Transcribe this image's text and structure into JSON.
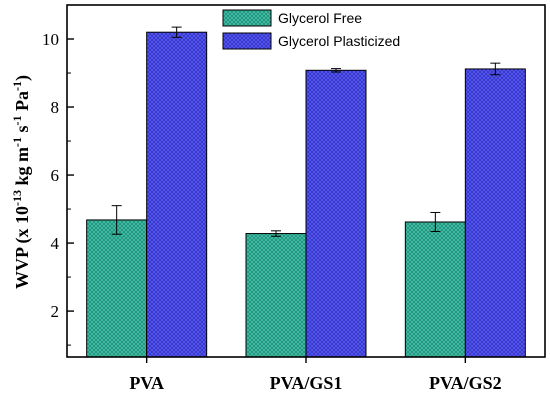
{
  "chart_data": {
    "type": "bar",
    "categories": [
      "PVA",
      "PVA/GS1",
      "PVA/GS2"
    ],
    "series": [
      {
        "name": "Glycerol Free",
        "values": [
          4.68,
          4.28,
          4.62
        ],
        "errors": [
          0.42,
          0.08,
          0.28
        ],
        "color": "#3cc0a6"
      },
      {
        "name": "Glycerol Plasticized",
        "values": [
          10.2,
          9.08,
          9.12
        ],
        "errors": [
          0.15,
          0.05,
          0.17
        ],
        "color": "#5050f0"
      }
    ],
    "ylabel_main": "WVP (x 10",
    "ylabel_exp1": "-13",
    "ylabel_mid1": " kg m",
    "ylabel_exp2": "-1",
    "ylabel_mid2": " s",
    "ylabel_exp3": "-1",
    "ylabel_mid3": " Pa",
    "ylabel_exp4": "-1",
    "ylabel_end": ")",
    "yticks": [
      2,
      4,
      6,
      8,
      10
    ],
    "ylim": [
      0.65,
      11.0
    ],
    "grid": false,
    "legend_position": "top-center"
  }
}
